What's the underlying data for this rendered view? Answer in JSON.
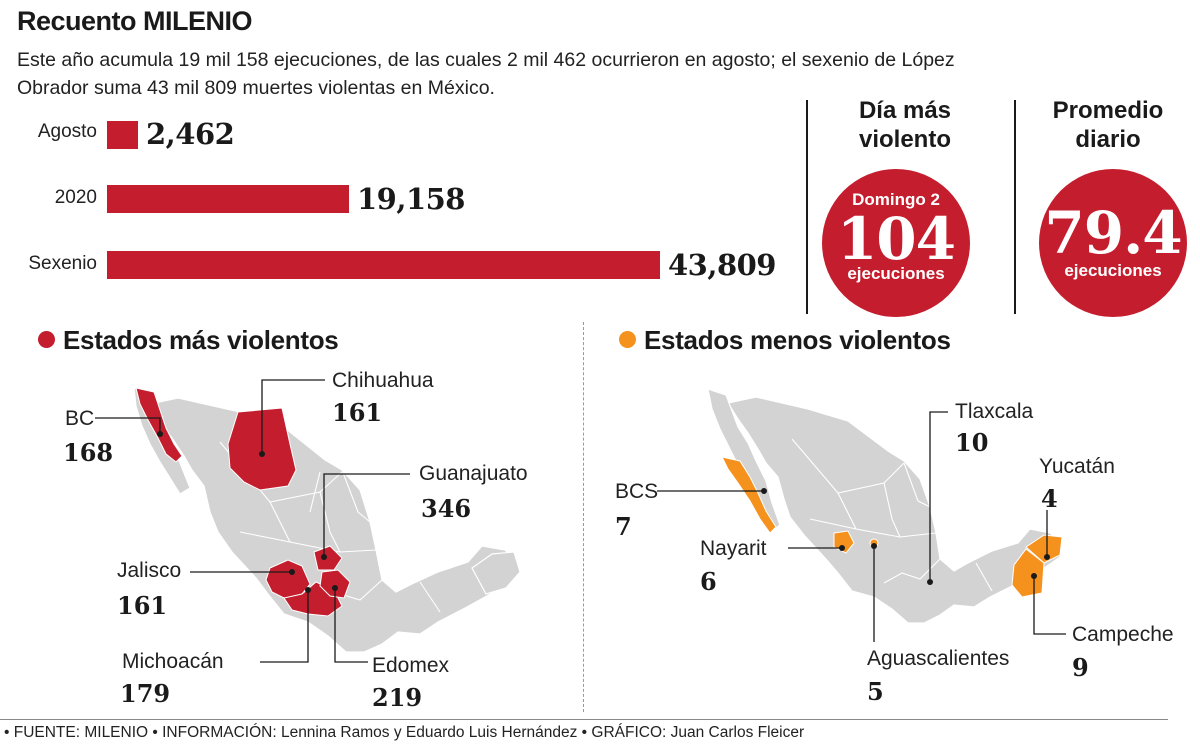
{
  "header": {
    "title": "Recuento MILENIO",
    "subtitle": "Este año acumula 19 mil 158 ejecuciones, de las cuales 2 mil 462 ocurrieron en agosto; el sexenio de López Obrador suma 43 mil 809 muertes violentas en México."
  },
  "chart_data": {
    "type": "bar",
    "orientation": "horizontal",
    "categories": [
      "Agosto",
      "2020",
      "Sexenio"
    ],
    "values": [
      2462,
      19158,
      43809
    ],
    "value_labels": [
      "2,462",
      "19,158",
      "43,809"
    ],
    "bar_color": "#c41e2e"
  },
  "kpis": {
    "day": {
      "heading": "Día más violento",
      "top": "Domingo 2",
      "value": "104",
      "unit": "ejecuciones"
    },
    "avg": {
      "heading": "Promedio diario",
      "value": "79.4",
      "unit": "ejecuciones"
    }
  },
  "most_violent": {
    "title": "Estados más violentos",
    "color": "#c41e2e",
    "states": {
      "bc": {
        "name": "BC",
        "value": "168"
      },
      "chihuahua": {
        "name": "Chihuahua",
        "value": "161"
      },
      "guanajuato": {
        "name": "Guanajuato",
        "value": "346"
      },
      "jalisco": {
        "name": "Jalisco",
        "value": "161"
      },
      "michoacan": {
        "name": "Michoacán",
        "value": "179"
      },
      "edomex": {
        "name": "Edomex",
        "value": "219"
      }
    }
  },
  "least_violent": {
    "title": "Estados menos violentos",
    "color": "#f5921e",
    "states": {
      "tlaxcala": {
        "name": "Tlaxcala",
        "value": "10"
      },
      "yucatan": {
        "name": "Yucatán",
        "value": "4"
      },
      "bcs": {
        "name": "BCS",
        "value": "7"
      },
      "nayarit": {
        "name": "Nayarit",
        "value": "6"
      },
      "campeche": {
        "name": "Campeche",
        "value": "9"
      },
      "aguascalientes": {
        "name": "Aguascalientes",
        "value": "5"
      }
    }
  },
  "map_color": "#d3d3d3",
  "footer": "• FUENTE: MILENIO • INFORMACIÓN: Lennina Ramos y Eduardo Luis Hernández • GRÁFICO: Juan Carlos Fleicer"
}
